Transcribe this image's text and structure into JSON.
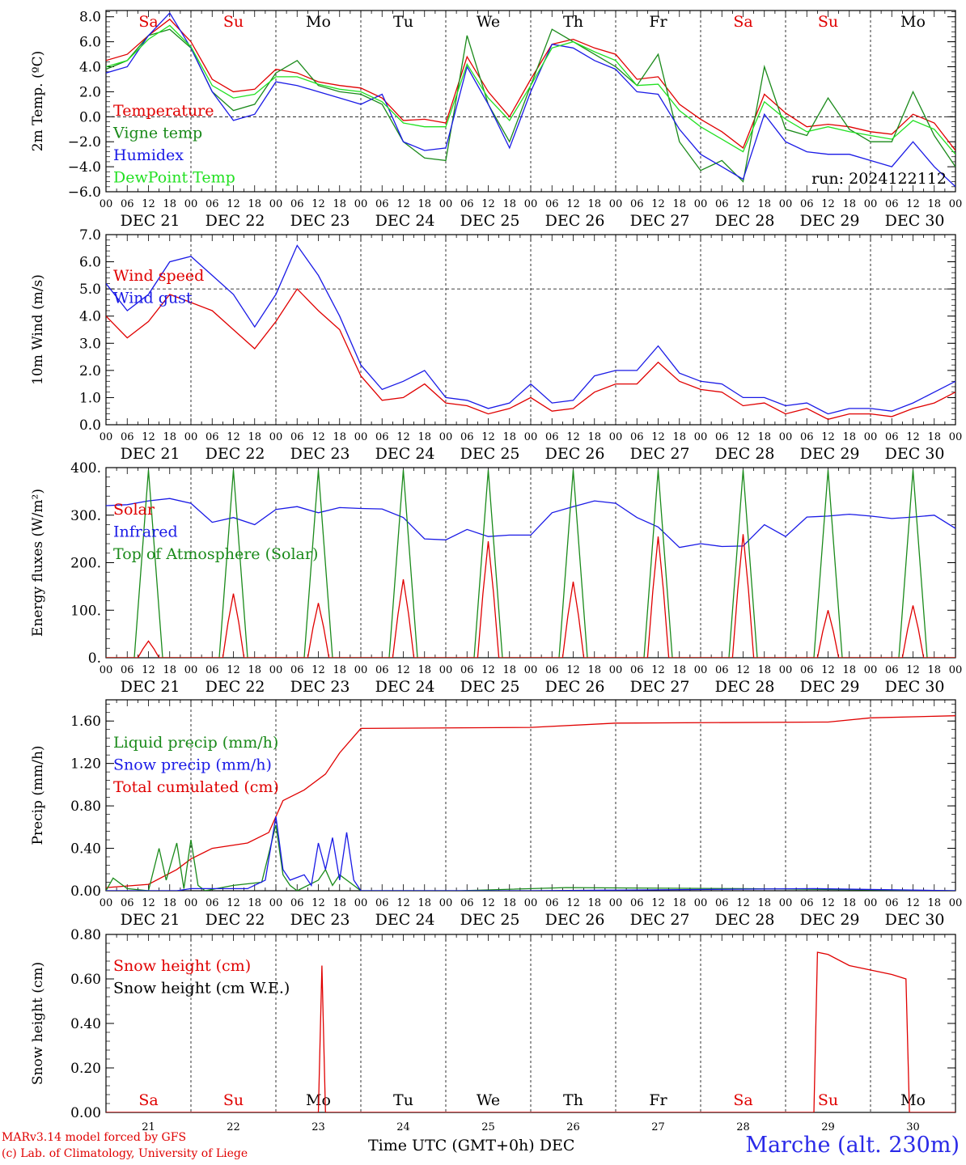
{
  "footer": {
    "credit_line1": "MARv3.14 model forced by GFS",
    "credit_line2": "(c) Lab. of Climatology, University of Liege",
    "xaxis_title": "Time UTC (GMT+0h) DEC",
    "station": "Marche (alt. 230m)"
  },
  "colors": {
    "red": "#e00000",
    "green": "#1a8a1a",
    "blue": "#1a1ae6",
    "lightgreen": "#22e022",
    "grid": "#000000"
  },
  "chart_data": [
    {
      "id": "temperature",
      "type": "line",
      "ylabel": "2m Temp. (ºC)",
      "ylim": [
        -6,
        8.5
      ],
      "yticks": [
        -6,
        -4,
        -2,
        0,
        2,
        4,
        6,
        8
      ],
      "ytick_labels": [
        "−6.0",
        "−4.0",
        "−2.0",
        "0.0",
        "2.0",
        "4.0",
        "6.0",
        "8.0"
      ],
      "hline": 0,
      "day_names": [
        "Sa",
        "Su",
        "Mo",
        "Tu",
        "We",
        "Th",
        "Fr",
        "Sa",
        "Su",
        "Mo"
      ],
      "day_name_colors": [
        "red",
        "red",
        "black",
        "black",
        "black",
        "black",
        "black",
        "red",
        "red",
        "black"
      ],
      "annotation": "run: 2024122112",
      "legend": [
        "Temperature",
        "Vigne temp",
        "Humidex",
        "DewPoint Temp"
      ],
      "x_hours": [
        0,
        6,
        12,
        18,
        24,
        30,
        36,
        42,
        48,
        54,
        60,
        66,
        72,
        78,
        84,
        90,
        96,
        102,
        108,
        114,
        120,
        126,
        132,
        138,
        144,
        150,
        156,
        162,
        168,
        174,
        180,
        186,
        192,
        198,
        204,
        210,
        216,
        222,
        228,
        234,
        240
      ],
      "series": [
        {
          "name": "Temperature",
          "color": "red",
          "values": [
            4.5,
            5.0,
            6.5,
            7.8,
            6.0,
            3.0,
            2.0,
            2.2,
            3.8,
            3.5,
            2.8,
            2.5,
            2.3,
            1.5,
            -0.3,
            -0.2,
            -0.5,
            4.8,
            2.0,
            0.0,
            3.0,
            5.8,
            6.2,
            5.5,
            5.0,
            3.0,
            3.2,
            1.0,
            -0.2,
            -1.2,
            -2.5,
            1.8,
            0.3,
            -0.8,
            -0.6,
            -0.8,
            -1.2,
            -1.4,
            0.2,
            -0.5,
            -2.7
          ]
        },
        {
          "name": "Vigne temp",
          "color": "green",
          "values": [
            3.8,
            4.5,
            6.5,
            7.0,
            5.5,
            2.0,
            0.5,
            1.0,
            3.5,
            4.5,
            2.5,
            2.0,
            1.8,
            1.0,
            -2.0,
            -3.3,
            -3.5,
            6.5,
            1.0,
            -2.0,
            2.5,
            7.0,
            6.0,
            5.0,
            4.0,
            2.5,
            5.0,
            -2.0,
            -4.3,
            -3.5,
            -5.2,
            4.0,
            -1.0,
            -1.5,
            1.5,
            -1.0,
            -2.0,
            -2.0,
            2.0,
            -1.5,
            -4.0
          ]
        },
        {
          "name": "Humidex",
          "color": "blue",
          "values": [
            3.5,
            4.0,
            6.5,
            8.3,
            5.5,
            2.0,
            -0.3,
            0.2,
            2.8,
            2.5,
            2.0,
            1.5,
            1.0,
            1.8,
            -2.0,
            -2.7,
            -2.5,
            4.0,
            1.0,
            -2.5,
            2.0,
            5.8,
            5.5,
            4.5,
            3.8,
            2.0,
            1.8,
            -1.0,
            -3.0,
            -4.0,
            -5.0,
            0.2,
            -2.0,
            -2.8,
            -3.0,
            -3.0,
            -3.5,
            -4.0,
            -2.0,
            -4.0,
            -5.6
          ]
        },
        {
          "name": "DewPoint Temp",
          "color": "lightgreen",
          "values": [
            4.0,
            4.5,
            6.2,
            7.3,
            5.6,
            2.5,
            1.5,
            1.8,
            3.2,
            3.2,
            2.6,
            2.2,
            2.0,
            1.2,
            -0.5,
            -0.8,
            -0.8,
            4.2,
            1.5,
            -0.3,
            2.5,
            5.5,
            6.0,
            5.2,
            4.5,
            2.5,
            2.6,
            0.5,
            -0.8,
            -1.8,
            -2.8,
            1.2,
            -0.2,
            -1.2,
            -0.8,
            -1.2,
            -1.5,
            -1.8,
            -0.3,
            -1.0,
            -3.0
          ]
        }
      ]
    },
    {
      "id": "wind",
      "type": "line",
      "ylabel": "10m Wind (m/s)",
      "ylim": [
        0,
        7
      ],
      "yticks": [
        0,
        1,
        2,
        3,
        4,
        5,
        6,
        7
      ],
      "ytick_labels": [
        "0.0",
        "1.0",
        "2.0",
        "3.0",
        "4.0",
        "5.0",
        "6.0",
        "7.0"
      ],
      "hline": 5,
      "legend": [
        "Wind speed",
        "Wind gust"
      ],
      "x_hours": [
        0,
        6,
        12,
        18,
        24,
        30,
        36,
        42,
        48,
        54,
        60,
        66,
        72,
        78,
        84,
        90,
        96,
        102,
        108,
        114,
        120,
        126,
        132,
        138,
        144,
        150,
        156,
        162,
        168,
        174,
        180,
        186,
        192,
        198,
        204,
        210,
        216,
        222,
        228,
        234,
        240
      ],
      "series": [
        {
          "name": "Wind speed",
          "color": "red",
          "values": [
            4.0,
            3.2,
            3.8,
            4.8,
            4.5,
            4.2,
            3.5,
            2.8,
            3.8,
            5.0,
            4.2,
            3.5,
            1.8,
            0.9,
            1.0,
            1.5,
            0.8,
            0.7,
            0.4,
            0.6,
            1.0,
            0.5,
            0.6,
            1.2,
            1.5,
            1.5,
            2.3,
            1.6,
            1.3,
            1.2,
            0.7,
            0.8,
            0.4,
            0.6,
            0.2,
            0.4,
            0.4,
            0.3,
            0.6,
            0.8,
            1.2
          ]
        },
        {
          "name": "Wind gust",
          "color": "blue",
          "values": [
            5.2,
            4.2,
            4.8,
            6.0,
            6.2,
            5.5,
            4.8,
            3.6,
            4.8,
            6.6,
            5.5,
            4.0,
            2.2,
            1.3,
            1.6,
            2.0,
            1.0,
            0.9,
            0.6,
            0.8,
            1.5,
            0.8,
            0.9,
            1.8,
            2.0,
            2.0,
            2.9,
            1.9,
            1.6,
            1.5,
            1.0,
            1.0,
            0.7,
            0.8,
            0.4,
            0.6,
            0.6,
            0.5,
            0.8,
            1.2,
            1.6
          ]
        }
      ]
    },
    {
      "id": "energy",
      "type": "line",
      "ylabel": "Energy fluxes (W/m²)",
      "ylim": [
        0,
        400
      ],
      "yticks": [
        0,
        100,
        200,
        300,
        400
      ],
      "ytick_labels": [
        "0.",
        "100.",
        "200.",
        "300.",
        "400."
      ],
      "legend": [
        "Solar",
        "Infrared",
        "Top of Atmosphere (Solar)"
      ],
      "x_hours": [
        0,
        6,
        12,
        18,
        24,
        30,
        36,
        42,
        48,
        54,
        60,
        66,
        72,
        78,
        84,
        90,
        96,
        102,
        108,
        114,
        120,
        126,
        132,
        138,
        144,
        150,
        156,
        162,
        168,
        174,
        180,
        186,
        192,
        198,
        204,
        210,
        216,
        222,
        228,
        234,
        240
      ],
      "series": [
        {
          "name": "Infrared",
          "color": "blue",
          "values": [
            320,
            322,
            330,
            335,
            325,
            285,
            295,
            280,
            312,
            318,
            305,
            316,
            314,
            313,
            295,
            250,
            248,
            270,
            255,
            258,
            258,
            305,
            318,
            330,
            325,
            295,
            275,
            232,
            240,
            234,
            235,
            280,
            255,
            296,
            298,
            302,
            298,
            293,
            296,
            300,
            272
          ]
        },
        {
          "name": "Top of Atmosphere (Solar)",
          "color": "green",
          "peak": 395,
          "daily_window": [
            8,
            16
          ]
        },
        {
          "name": "Solar",
          "color": "red",
          "daily_peaks": [
            35,
            135,
            115,
            165,
            245,
            160,
            255,
            260,
            100,
            110
          ]
        }
      ]
    },
    {
      "id": "precip",
      "type": "line",
      "ylabel": "Precip (mm/h)",
      "ylim": [
        0,
        1.8
      ],
      "yticks": [
        0,
        0.4,
        0.8,
        1.2,
        1.6
      ],
      "ytick_labels": [
        "0.00",
        "0.40",
        "0.80",
        "1.20",
        "1.60"
      ],
      "legend": [
        "Liquid precip (mm/h)",
        "Snow precip (mm/h)",
        "Total cumulated (cm)"
      ],
      "series": [
        {
          "name": "Total cumulated (cm)",
          "color": "red",
          "x_hours": [
            0,
            12,
            20,
            24,
            30,
            40,
            46,
            50,
            56,
            62,
            66,
            72,
            120,
            144,
            204,
            216,
            240
          ],
          "values": [
            0.03,
            0.06,
            0.2,
            0.3,
            0.4,
            0.45,
            0.55,
            0.85,
            0.95,
            1.1,
            1.3,
            1.53,
            1.54,
            1.58,
            1.59,
            1.63,
            1.65
          ]
        },
        {
          "name": "Liquid precip (mm/h)",
          "color": "green",
          "x_hours": [
            0,
            2,
            6,
            12,
            15,
            17,
            20,
            22,
            24,
            26,
            28,
            36,
            44,
            48,
            50,
            52,
            54,
            60,
            62,
            64,
            66,
            70,
            72,
            100,
            130,
            180,
            240
          ],
          "values": [
            0.0,
            0.12,
            0.02,
            0.0,
            0.4,
            0.1,
            0.45,
            0.02,
            0.48,
            0.05,
            0.0,
            0.05,
            0.08,
            0.62,
            0.15,
            0.05,
            0.0,
            0.1,
            0.2,
            0.05,
            0.15,
            0.05,
            0.0,
            0.0,
            0.03,
            0.02,
            0.0
          ]
        },
        {
          "name": "Snow precip (mm/h)",
          "color": "blue",
          "x_hours": [
            0,
            20,
            24,
            40,
            45,
            48,
            50,
            52,
            56,
            58,
            60,
            62,
            64,
            66,
            68,
            70,
            72,
            120,
            200,
            240
          ],
          "values": [
            0.0,
            0.0,
            0.02,
            0.02,
            0.1,
            0.7,
            0.2,
            0.1,
            0.15,
            0.05,
            0.45,
            0.2,
            0.5,
            0.1,
            0.55,
            0.1,
            0.0,
            0.0,
            0.02,
            0.0
          ]
        }
      ]
    },
    {
      "id": "snow",
      "type": "line",
      "ylabel": "Snow height (cm)",
      "ylim": [
        0,
        0.8
      ],
      "yticks": [
        0,
        0.2,
        0.4,
        0.6,
        0.8
      ],
      "ytick_labels": [
        "0.00",
        "0.20",
        "0.40",
        "0.60",
        "0.80"
      ],
      "legend": [
        "Snow height (cm)",
        "Snow height (cm W.E.)"
      ],
      "day_names": [
        "Sa",
        "Su",
        "Mo",
        "Tu",
        "We",
        "Th",
        "Fr",
        "Sa",
        "Su",
        "Mo"
      ],
      "day_name_colors": [
        "red",
        "red",
        "black",
        "black",
        "black",
        "black",
        "black",
        "red",
        "red",
        "black"
      ],
      "day_numbers": [
        "21",
        "22",
        "23",
        "24",
        "25",
        "26",
        "27",
        "28",
        "29",
        "30"
      ],
      "series": [
        {
          "name": "Snow height (cm)",
          "color": "red",
          "x_hours": [
            0,
            60,
            61,
            62,
            63,
            200,
            201,
            204,
            210,
            216,
            222,
            226,
            227,
            240
          ],
          "values": [
            0,
            0,
            0.66,
            0.0,
            0,
            0,
            0.72,
            0.71,
            0.66,
            0.64,
            0.62,
            0.6,
            0.0,
            0.0
          ]
        }
      ]
    }
  ],
  "date_labels": [
    "DEC 21",
    "DEC 22",
    "DEC 23",
    "DEC 24",
    "DEC 25",
    "DEC 26",
    "DEC 27",
    "DEC 28",
    "DEC 29",
    "DEC 30"
  ],
  "hour_labels": [
    "00",
    "06",
    "12",
    "18"
  ],
  "last_hour_label": "00"
}
